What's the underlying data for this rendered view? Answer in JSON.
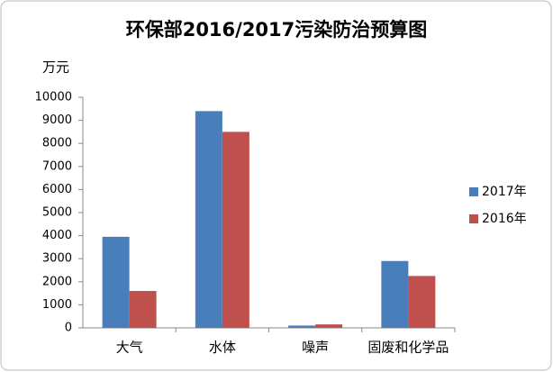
{
  "chart_data": {
    "type": "bar",
    "title": "环保部2016/2017污染防治预算图",
    "y_label": "万元",
    "categories": [
      "大气",
      "水体",
      "噪声",
      "固废和化学品"
    ],
    "series": [
      {
        "name": "2017年",
        "color": "#4a7ebb",
        "values": [
          3950,
          9400,
          100,
          2900
        ]
      },
      {
        "name": "2016年",
        "color": "#c0504d",
        "values": [
          1600,
          8500,
          150,
          2250
        ]
      }
    ],
    "ylim": [
      0,
      10000
    ],
    "yticks": [
      0,
      1000,
      2000,
      3000,
      4000,
      5000,
      6000,
      7000,
      8000,
      9000,
      10000
    ],
    "grid": false,
    "legend": "right"
  }
}
